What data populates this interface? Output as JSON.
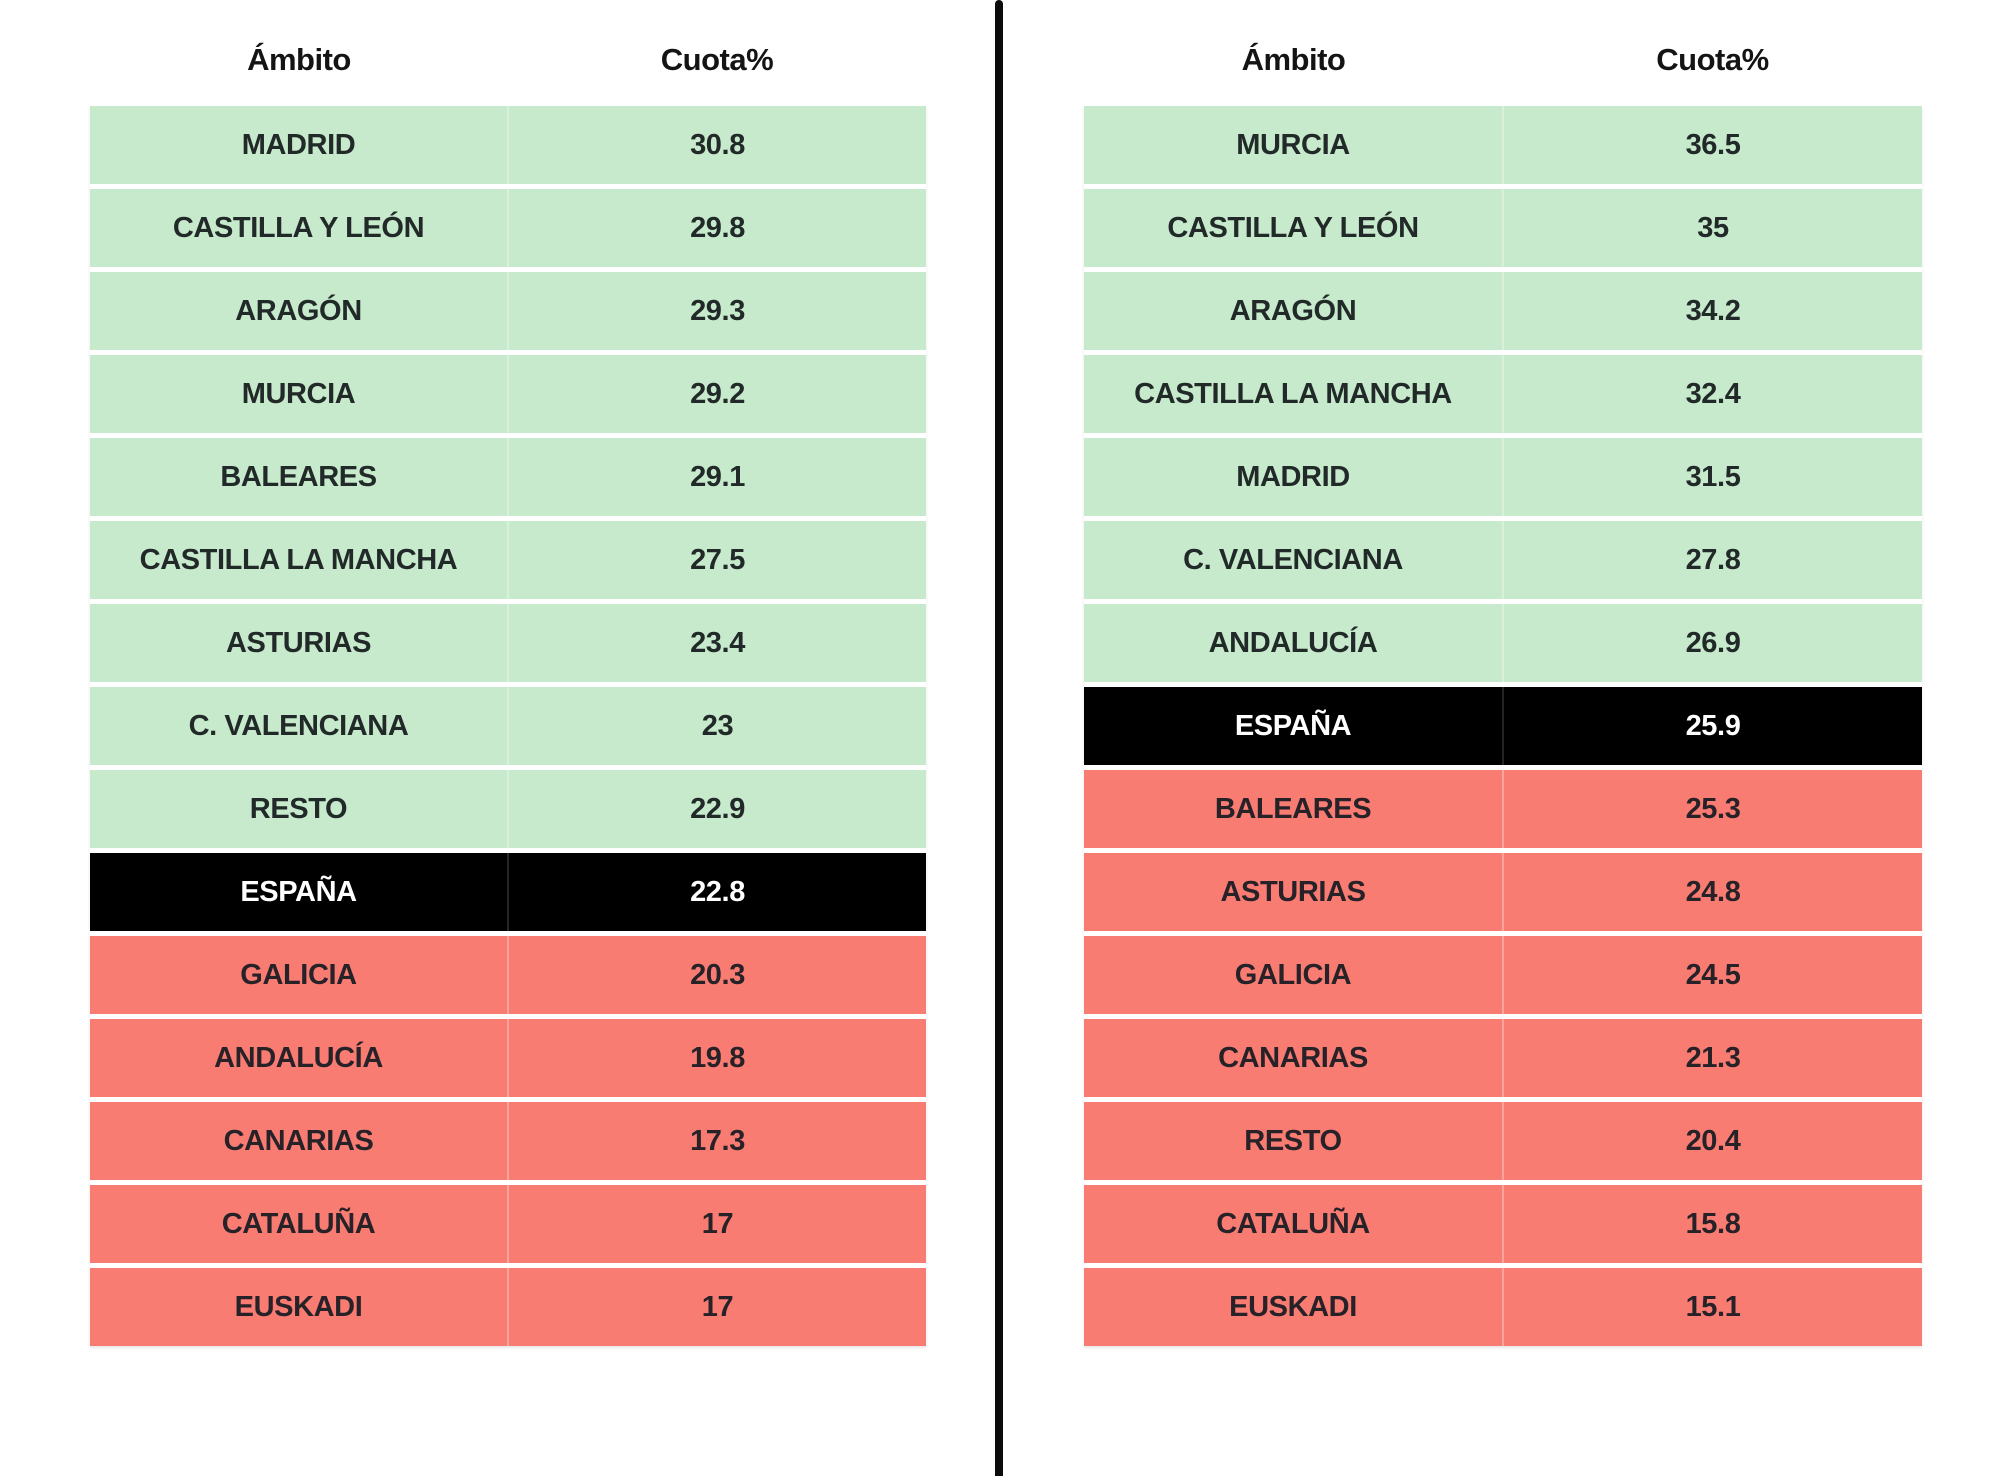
{
  "columns": {
    "ambito": "Ámbito",
    "cuota": "Cuota%"
  },
  "colors": {
    "above_average_green": "#c7e9cc",
    "below_average_red": "#f97c73",
    "total_black": "#000000",
    "text_dark": "#212a28",
    "text_on_total": "#ffffff",
    "background": "#ffffff"
  },
  "tables": [
    {
      "id": "left",
      "rows": [
        {
          "label": "MADRID",
          "value": "30.8",
          "status": "above"
        },
        {
          "label": "CASTILLA Y LEÓN",
          "value": "29.8",
          "status": "above"
        },
        {
          "label": "ARAGÓN",
          "value": "29.3",
          "status": "above"
        },
        {
          "label": "MURCIA",
          "value": "29.2",
          "status": "above"
        },
        {
          "label": "BALEARES",
          "value": "29.1",
          "status": "above"
        },
        {
          "label": "CASTILLA LA MANCHA",
          "value": "27.5",
          "status": "above"
        },
        {
          "label": "ASTURIAS",
          "value": "23.4",
          "status": "above"
        },
        {
          "label": "C. VALENCIANA",
          "value": "23",
          "status": "above"
        },
        {
          "label": "RESTO",
          "value": "22.9",
          "status": "above"
        },
        {
          "label": "ESPAÑA",
          "value": "22.8",
          "status": "total"
        },
        {
          "label": "GALICIA",
          "value": "20.3",
          "status": "below"
        },
        {
          "label": "ANDALUCÍA",
          "value": "19.8",
          "status": "below"
        },
        {
          "label": "CANARIAS",
          "value": "17.3",
          "status": "below"
        },
        {
          "label": "CATALUÑA",
          "value": "17",
          "status": "below"
        },
        {
          "label": "EUSKADI",
          "value": "17",
          "status": "below"
        }
      ]
    },
    {
      "id": "right",
      "rows": [
        {
          "label": "MURCIA",
          "value": "36.5",
          "status": "above"
        },
        {
          "label": "CASTILLA Y LEÓN",
          "value": "35",
          "status": "above"
        },
        {
          "label": "ARAGÓN",
          "value": "34.2",
          "status": "above"
        },
        {
          "label": "CASTILLA LA MANCHA",
          "value": "32.4",
          "status": "above"
        },
        {
          "label": "MADRID",
          "value": "31.5",
          "status": "above"
        },
        {
          "label": "C. VALENCIANA",
          "value": "27.8",
          "status": "above"
        },
        {
          "label": "ANDALUCÍA",
          "value": "26.9",
          "status": "above"
        },
        {
          "label": "ESPAÑA",
          "value": "25.9",
          "status": "total"
        },
        {
          "label": "BALEARES",
          "value": "25.3",
          "status": "below"
        },
        {
          "label": "ASTURIAS",
          "value": "24.8",
          "status": "below"
        },
        {
          "label": "GALICIA",
          "value": "24.5",
          "status": "below"
        },
        {
          "label": "CANARIAS",
          "value": "21.3",
          "status": "below"
        },
        {
          "label": "RESTO",
          "value": "20.4",
          "status": "below"
        },
        {
          "label": "CATALUÑA",
          "value": "15.8",
          "status": "below"
        },
        {
          "label": "EUSKADI",
          "value": "15.1",
          "status": "below"
        }
      ]
    }
  ],
  "chart_data": [
    {
      "type": "table",
      "columns": [
        "Ámbito",
        "Cuota%"
      ],
      "rows": [
        [
          "MADRID",
          30.8
        ],
        [
          "CASTILLA Y LEÓN",
          29.8
        ],
        [
          "ARAGÓN",
          29.3
        ],
        [
          "MURCIA",
          29.2
        ],
        [
          "BALEARES",
          29.1
        ],
        [
          "CASTILLA LA MANCHA",
          27.5
        ],
        [
          "ASTURIAS",
          23.4
        ],
        [
          "C. VALENCIANA",
          23
        ],
        [
          "RESTO",
          22.9
        ],
        [
          "ESPAÑA",
          22.8
        ],
        [
          "GALICIA",
          20.3
        ],
        [
          "ANDALUCÍA",
          19.8
        ],
        [
          "CANARIAS",
          17.3
        ],
        [
          "CATALUÑA",
          17
        ],
        [
          "EUSKADI",
          17
        ]
      ],
      "row_highlight": "ESPAÑA row black; rows above ESPAÑA green; rows below red"
    },
    {
      "type": "table",
      "columns": [
        "Ámbito",
        "Cuota%"
      ],
      "rows": [
        [
          "MURCIA",
          36.5
        ],
        [
          "CASTILLA Y LEÓN",
          35
        ],
        [
          "ARAGÓN",
          34.2
        ],
        [
          "CASTILLA LA MANCHA",
          32.4
        ],
        [
          "MADRID",
          31.5
        ],
        [
          "C. VALENCIANA",
          27.8
        ],
        [
          "ANDALUCÍA",
          26.9
        ],
        [
          "ESPAÑA",
          25.9
        ],
        [
          "BALEARES",
          25.3
        ],
        [
          "ASTURIAS",
          24.8
        ],
        [
          "GALICIA",
          24.5
        ],
        [
          "CANARIAS",
          21.3
        ],
        [
          "RESTO",
          20.4
        ],
        [
          "CATALUÑA",
          15.8
        ],
        [
          "EUSKADI",
          15.1
        ]
      ],
      "row_highlight": "ESPAÑA row black; rows above ESPAÑA green; rows below red"
    }
  ]
}
